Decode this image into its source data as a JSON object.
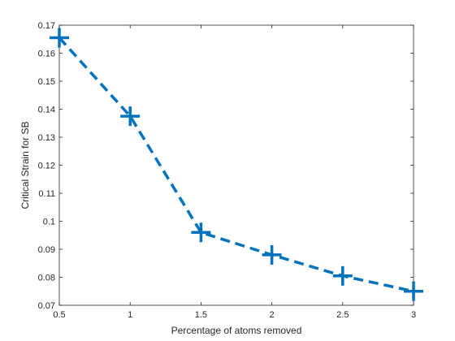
{
  "chart_data": {
    "type": "line",
    "title": "",
    "xlabel": "Percentage of atoms removed",
    "ylabel": "Critical Strain for SB",
    "xlim": [
      0.5,
      3
    ],
    "ylim": [
      0.07,
      0.17
    ],
    "x_ticks": [
      "0.5",
      "1",
      "1.5",
      "2",
      "2.5",
      "3"
    ],
    "y_ticks": [
      "0.07",
      "0.08",
      "0.09",
      "0.1",
      "0.11",
      "0.12",
      "0.13",
      "0.14",
      "0.15",
      "0.16",
      "0.17"
    ],
    "grid": false,
    "legend": "none",
    "series": [
      {
        "x": [
          0.5,
          1,
          1.5,
          2,
          2.5,
          3
        ],
        "y": [
          0.1655,
          0.1375,
          0.096,
          0.088,
          0.0805,
          0.075
        ],
        "line_style": "dashed",
        "marker": "+",
        "color": "#0072BD"
      }
    ]
  }
}
